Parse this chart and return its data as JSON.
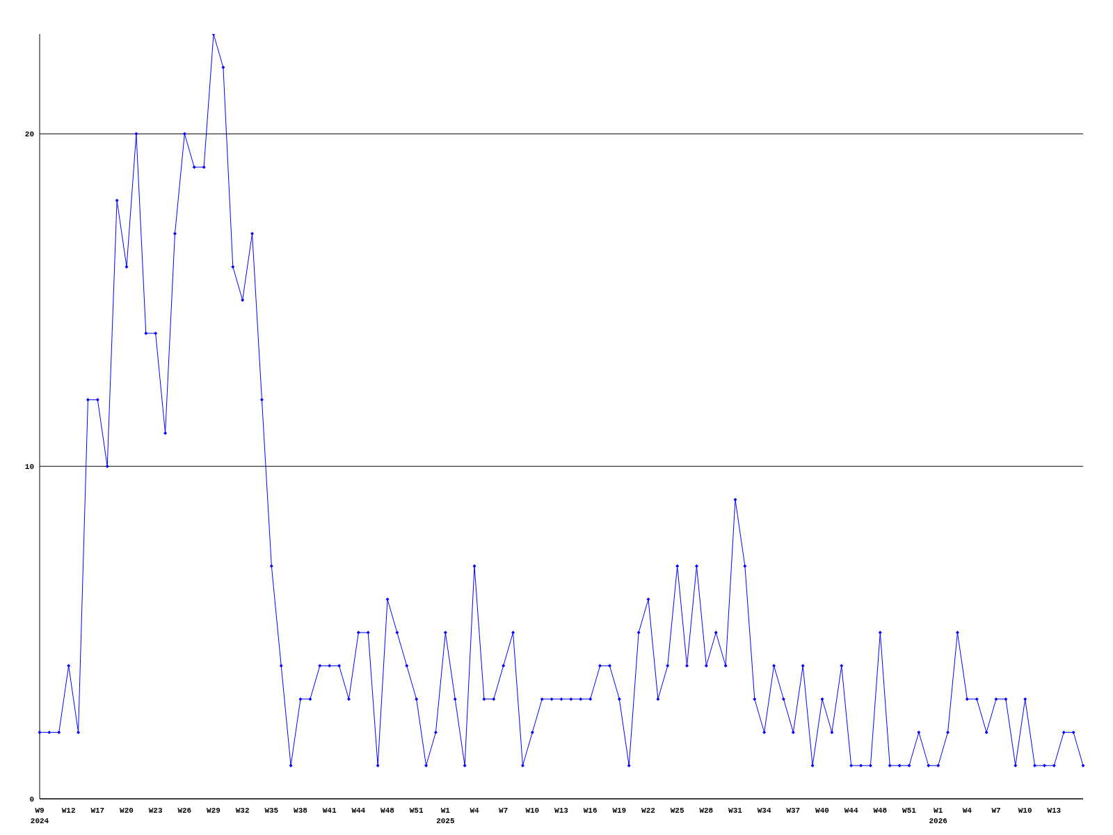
{
  "chart_data": {
    "type": "line",
    "categories": [
      "W9\n2024",
      null,
      null,
      "W12",
      null,
      null,
      "W17",
      null,
      null,
      "W20",
      null,
      null,
      "W23",
      null,
      null,
      "W26",
      null,
      null,
      "W29",
      null,
      null,
      "W32",
      null,
      null,
      "W35",
      null,
      null,
      "W38",
      null,
      null,
      "W41",
      null,
      null,
      "W44",
      null,
      null,
      "W48",
      null,
      null,
      "W51",
      null,
      null,
      "W1\n2025",
      null,
      null,
      "W4",
      null,
      null,
      "W7",
      null,
      null,
      "W10",
      null,
      null,
      "W13",
      null,
      null,
      "W16",
      null,
      null,
      "W19",
      null,
      null,
      "W22",
      null,
      null,
      "W25",
      null,
      null,
      "W28",
      null,
      null,
      "W31",
      null,
      null,
      "W34",
      null,
      null,
      "W37",
      null,
      null,
      "W40",
      null,
      null,
      "W44",
      null,
      null,
      "W48",
      null,
      null,
      "W51",
      null,
      null,
      "W1\n2026",
      null,
      null,
      "W4",
      null,
      null,
      "W7",
      null,
      null,
      "W10",
      null,
      null,
      "W13",
      null,
      null,
      null
    ],
    "series": [
      {
        "color": "#0000ff",
        "values": [
          2,
          2,
          2,
          4,
          2,
          12,
          12,
          10,
          18,
          16,
          20,
          14,
          14,
          11,
          17,
          20,
          19,
          19,
          23,
          22,
          16,
          15,
          17,
          12,
          7,
          4,
          1,
          3,
          3,
          4,
          4,
          4,
          3,
          5,
          5,
          1,
          6,
          5,
          4,
          3,
          1,
          2,
          5,
          3,
          1,
          7,
          3,
          3,
          4,
          5,
          1,
          2,
          3,
          3,
          3,
          3,
          3,
          3,
          4,
          4,
          3,
          1,
          5,
          6,
          3,
          4,
          7,
          4,
          7,
          4,
          5,
          4,
          9,
          7,
          3,
          2,
          4,
          3,
          2,
          4,
          1,
          3,
          2,
          4,
          1,
          1,
          1,
          5,
          1,
          1,
          1,
          2,
          1,
          1,
          2,
          5,
          3,
          3,
          2,
          3,
          3,
          1,
          3,
          1,
          1,
          1,
          2,
          2,
          1
        ]
      }
    ],
    "ylim": [
      0,
      23
    ],
    "yticks": [
      0,
      10,
      20
    ],
    "grid": "y",
    "marker": "diamond",
    "line_style": "solid"
  }
}
